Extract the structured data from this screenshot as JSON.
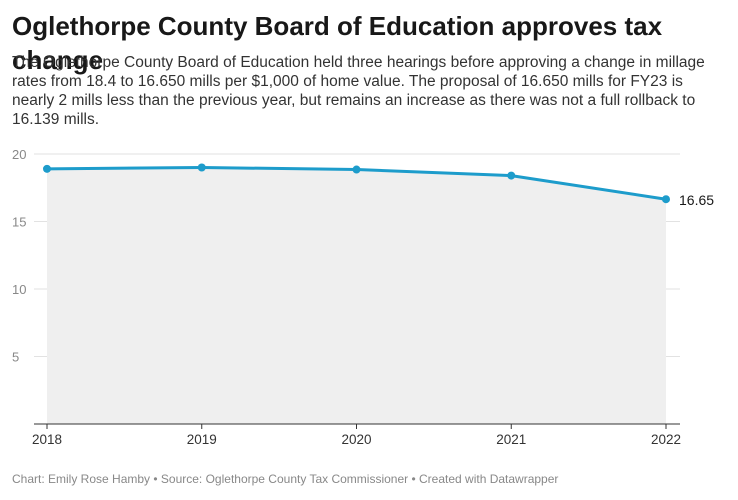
{
  "header": {
    "title": "Oglethorpe County Board of Education approves tax change",
    "description": "The Oglethorpe County Board of Education held three hearings before approving a change in millage rates from 18.4 to 16.650 mills per $1,000 of home value. The proposal of 16.650 mills for FY23 is nearly 2 mills less than the previous year, but remains an increase as there was not a full rollback to 16.139 mills."
  },
  "footer": {
    "credit": "Chart: Emily Rose Hamby • Source: Oglethorpe County Tax Commissioner • Created with Datawrapper"
  },
  "chart_data": {
    "type": "area",
    "title": "Oglethorpe County Board of Education approves tax change",
    "xlabel": "",
    "ylabel": "",
    "x": [
      "2018",
      "2019",
      "2020",
      "2021",
      "2022"
    ],
    "values": [
      18.9,
      19.0,
      18.85,
      18.4,
      16.65
    ],
    "data_labels": [
      "",
      "",
      "",
      "",
      "16.65"
    ],
    "ylim": [
      0,
      20
    ],
    "yticks": [
      5,
      10,
      15,
      20
    ],
    "grid": true,
    "line_color": "#1d9ccb",
    "fill_color": "#efefef"
  }
}
